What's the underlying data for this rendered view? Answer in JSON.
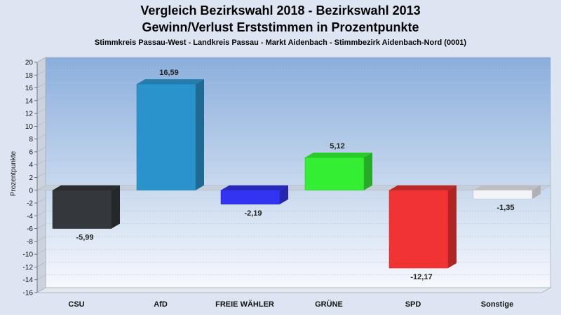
{
  "chart_data": {
    "type": "bar",
    "title": "Vergleich Bezirkswahl 2018 - Bezirkswahl 2013",
    "subtitle": "Gewinn/Verlust Erststimmen in Prozentpunkte",
    "caption": "Stimmkreis Passau-West - Landkreis Passau - Markt Aidenbach - Stimmbezirk Aidenbach-Nord (0001)",
    "ylabel": "Prozentpunkte",
    "xlabel": "",
    "ylim": [
      -16,
      20
    ],
    "yticks": [
      20,
      18,
      16,
      14,
      12,
      10,
      8,
      6,
      4,
      2,
      0,
      -2,
      -4,
      -6,
      -8,
      -10,
      -12,
      -14,
      -16
    ],
    "categories": [
      "CSU",
      "AfD",
      "FREIE WÄHLER",
      "GRÜNE",
      "SPD",
      "Sonstige"
    ],
    "values": [
      -5.99,
      16.59,
      -2.19,
      5.12,
      -12.17,
      -1.35
    ],
    "value_labels": [
      "-5,99",
      "16,59",
      "-2,19",
      "5,12",
      "-12,17",
      "-1,35"
    ],
    "colors": [
      "#34373b",
      "#2b93cc",
      "#3333f2",
      "#33ee33",
      "#f23333",
      "#f2f4f8"
    ],
    "grid": true,
    "legend": "none"
  }
}
